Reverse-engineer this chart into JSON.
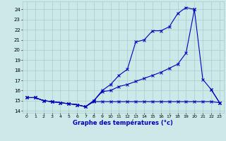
{
  "xlabel": "Graphe des températures (°c)",
  "bg_color": "#cce8e8",
  "grid_color": "#aacccc",
  "line_color": "#0000bb",
  "ylim": [
    13.8,
    24.8
  ],
  "y_ticks": [
    14,
    15,
    16,
    17,
    18,
    19,
    20,
    21,
    22,
    23,
    24
  ],
  "x_ticks": [
    0,
    1,
    2,
    3,
    4,
    5,
    6,
    7,
    8,
    9,
    10,
    11,
    12,
    13,
    14,
    15,
    16,
    17,
    18,
    19,
    20,
    21,
    22,
    23
  ],
  "series1_y": [
    15.3,
    15.3,
    15.0,
    14.9,
    14.8,
    14.7,
    14.6,
    14.4,
    15.0,
    16.0,
    16.6,
    17.5,
    18.1,
    20.8,
    21.0,
    21.9,
    21.9,
    22.3,
    23.6,
    24.2,
    24.0,
    null,
    16.1,
    14.8
  ],
  "series2_y": [
    15.3,
    15.3,
    15.0,
    14.9,
    14.8,
    14.7,
    14.6,
    14.4,
    15.0,
    15.9,
    16.0,
    16.4,
    16.6,
    16.9,
    17.2,
    17.5,
    17.8,
    18.2,
    18.6,
    19.7,
    24.0,
    17.1,
    16.1,
    14.8
  ],
  "series3_y": [
    15.3,
    15.3,
    15.0,
    14.9,
    14.8,
    14.7,
    14.6,
    14.4,
    14.9,
    14.9,
    14.9,
    14.9,
    14.9,
    14.9,
    14.9,
    14.9,
    14.9,
    14.9,
    14.9,
    14.9,
    14.9,
    14.9,
    14.9,
    14.8
  ]
}
